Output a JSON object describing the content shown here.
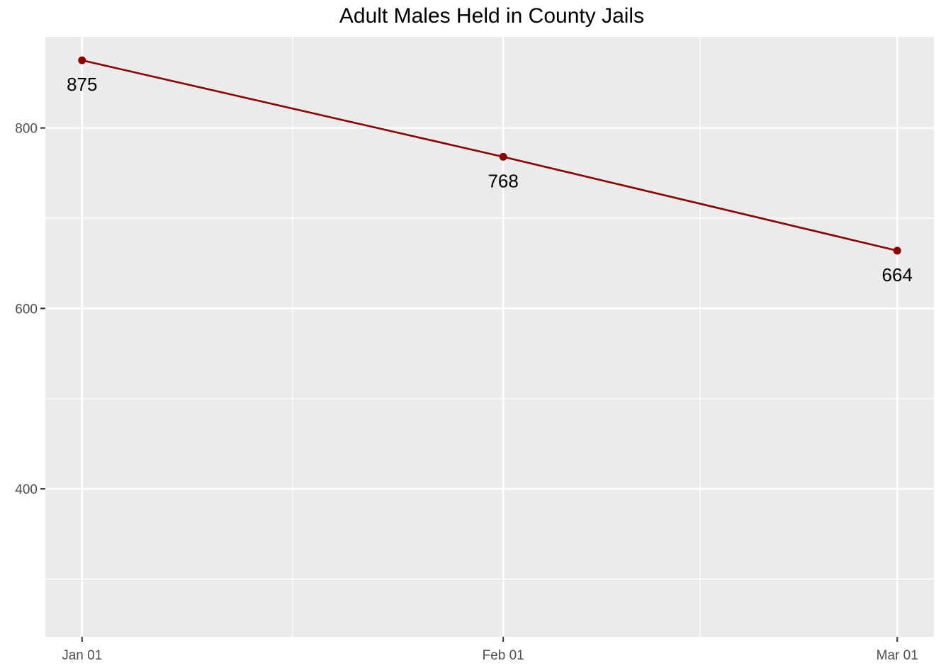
{
  "chart_data": {
    "type": "line",
    "title": "Adult Males Held in County Jails",
    "xlabel": "",
    "ylabel": "",
    "x": [
      "2024-01-01",
      "2024-02-01",
      "2024-03-01"
    ],
    "x_tick_labels": [
      "Jan 01",
      "Feb 01",
      "Mar 01"
    ],
    "series": [
      {
        "values": [
          875,
          768,
          664
        ],
        "data_labels": [
          "875",
          "768",
          "664"
        ]
      }
    ],
    "ylim": [
      236,
      901
    ],
    "y_ticks": [
      400,
      600,
      800
    ],
    "y_tick_labels": [
      "400",
      "600",
      "800"
    ],
    "y_minor_ticks": [
      300,
      500,
      700
    ],
    "grid": true,
    "legend": "none",
    "colors": {
      "line": "#8b0000",
      "point": "#8b0000",
      "panel": "#ebebeb",
      "grid": "#ffffff"
    }
  }
}
